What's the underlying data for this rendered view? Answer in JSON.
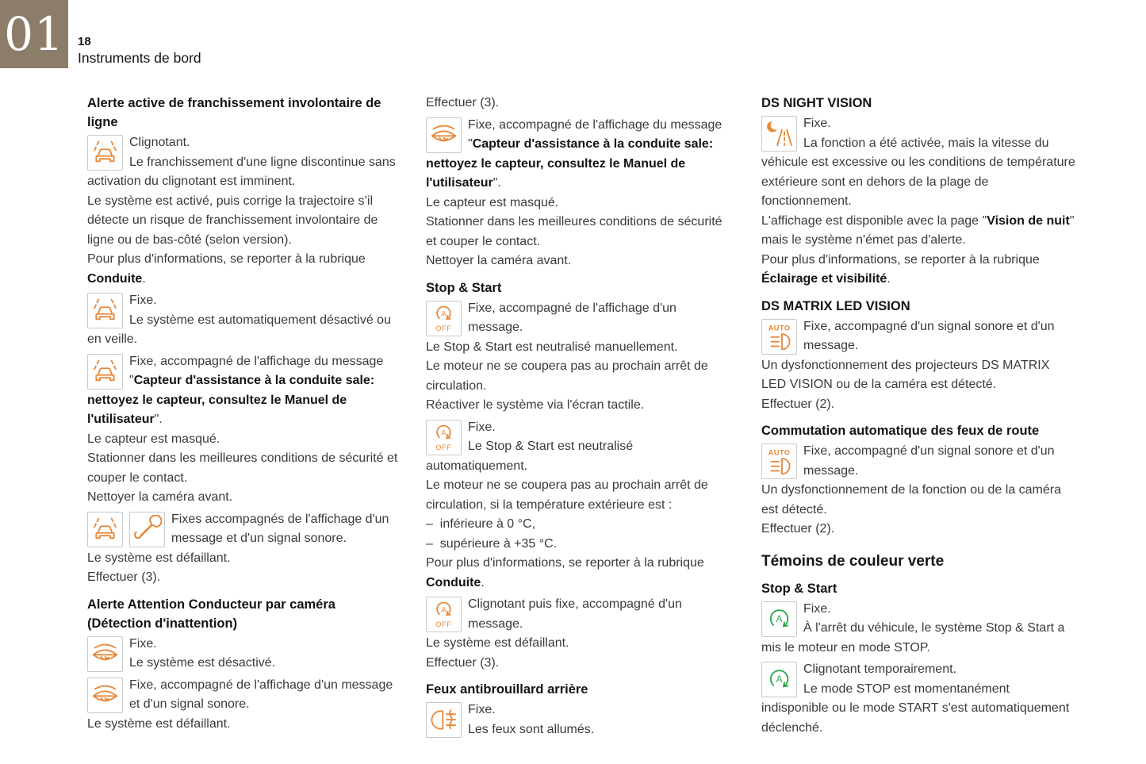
{
  "page": {
    "chapter": "01",
    "page_number": "18",
    "section_title": "Instruments de bord"
  },
  "colors": {
    "accent_orange": "#e8893b",
    "accent_green": "#2ba84a",
    "chapter_box_bg": "#8c7d6b",
    "body_text": "#3a3a3a"
  },
  "icon_legend": {
    "lane": "lane-departure-warning-icon",
    "wrench": "service-wrench-icon",
    "eye": "driver-attention-eye-icon",
    "aoff": "stop-start-off-icon",
    "fog": "rear-fog-lights-icon",
    "night": "night-vision-icon",
    "auto": "auto-main-beam-headlight-icon",
    "green": "stop-start-icon"
  },
  "c1": [
    {
      "h": "Alerte active de franchissement involontaire de ligne"
    },
    {
      "icons": [
        "lane"
      ],
      "paras": [
        [
          {
            "t": "Clignotant."
          }
        ],
        [
          {
            "t": "Le franchissement d'une ligne discontinue sans activation du clignotant est imminent."
          }
        ],
        [
          {
            "t": "Le système est activé, puis corrige la trajectoire s’il détecte un risque de franchissement involontaire de ligne ou de bas-côté (selon version)."
          }
        ],
        [
          {
            "t": "Pour plus d'informations, se reporter à la rubrique "
          },
          {
            "t": "Conduite",
            "b": true
          },
          {
            "t": "."
          }
        ]
      ]
    },
    {
      "icons": [
        "lane"
      ],
      "paras": [
        [
          {
            "t": "Fixe."
          }
        ],
        [
          {
            "t": "Le système est automatiquement désactivé ou en veille."
          }
        ]
      ]
    },
    {
      "icons": [
        "lane"
      ],
      "paras": [
        [
          {
            "t": "Fixe, accompagné de l'affichage du message \""
          },
          {
            "t": "Capteur d'assistance à la conduite sale: nettoyez le capteur, consultez le Manuel de l'utilisateur",
            "b": true
          },
          {
            "t": "\"."
          }
        ],
        [
          {
            "t": "Le capteur est masqué."
          }
        ],
        [
          {
            "t": "Stationner dans les meilleures conditions de sécurité et couper le contact."
          }
        ],
        [
          {
            "t": "Nettoyer la caméra avant."
          }
        ]
      ]
    },
    {
      "icons": [
        "lane",
        "wrench"
      ],
      "paras": [
        [
          {
            "t": "Fixes accompagnés de l'affichage d'un message et d'un signal sonore."
          }
        ],
        [
          {
            "t": "Le système est défaillant."
          }
        ],
        [
          {
            "t": "Effectuer (3)."
          }
        ]
      ]
    },
    {
      "h": "Alerte Attention Conducteur par caméra (Détection d'inattention)"
    },
    {
      "icons": [
        "eye"
      ],
      "paras": [
        [
          {
            "t": "Fixe."
          }
        ],
        [
          {
            "t": "Le système est désactivé."
          }
        ]
      ]
    },
    {
      "icons": [
        "eye"
      ],
      "paras": [
        [
          {
            "t": "Fixe, accompagné de l'affichage d'un message et d'un signal sonore."
          }
        ],
        [
          {
            "t": "Le système est défaillant."
          }
        ]
      ]
    }
  ],
  "c2": [
    {
      "paras": [
        [
          {
            "t": "Effectuer (3)."
          }
        ]
      ]
    },
    {
      "icons": [
        "eye"
      ],
      "paras": [
        [
          {
            "t": "Fixe, accompagné de l'affichage du message \""
          },
          {
            "t": "Capteur d'assistance à la conduite sale: nettoyez le capteur, consultez le Manuel de l'utilisateur",
            "b": true
          },
          {
            "t": "\"."
          }
        ],
        [
          {
            "t": "Le capteur est masqué."
          }
        ],
        [
          {
            "t": "Stationner dans les meilleures conditions de sécurité et couper le contact."
          }
        ],
        [
          {
            "t": "Nettoyer la caméra avant."
          }
        ]
      ]
    },
    {
      "h": "Stop & Start"
    },
    {
      "icons": [
        "aoff"
      ],
      "paras": [
        [
          {
            "t": "Fixe, accompagné de l'affichage d'un message."
          }
        ],
        [
          {
            "t": "Le Stop & Start est neutralisé manuellement."
          }
        ],
        [
          {
            "t": "Le moteur ne se coupera pas au prochain arrêt de circulation."
          }
        ],
        [
          {
            "t": "Réactiver le système via l'écran tactile."
          }
        ]
      ]
    },
    {
      "icons": [
        "aoff"
      ],
      "paras": [
        [
          {
            "t": "Fixe."
          }
        ],
        [
          {
            "t": "Le Stop & Start est neutralisé automatiquement."
          }
        ],
        [
          {
            "t": "Le moteur ne se coupera pas au prochain arrêt de circulation, si la température extérieure est :"
          }
        ],
        [
          {
            "t": "–  inférieure à 0 °C,"
          }
        ],
        [
          {
            "t": "–  supérieure à +35 °C."
          }
        ],
        [
          {
            "t": "Pour plus d'informations, se reporter à la rubrique "
          },
          {
            "t": "Conduite",
            "b": true
          },
          {
            "t": "."
          }
        ]
      ]
    },
    {
      "icons": [
        "aoff"
      ],
      "paras": [
        [
          {
            "t": "Clignotant puis fixe, accompagné d'un message."
          }
        ],
        [
          {
            "t": "Le système est défaillant."
          }
        ],
        [
          {
            "t": "Effectuer (3)."
          }
        ]
      ]
    },
    {
      "h": "Feux antibrouillard arrière"
    },
    {
      "icons": [
        "fog"
      ],
      "paras": [
        [
          {
            "t": "Fixe."
          }
        ],
        [
          {
            "t": "Les feux sont allumés."
          }
        ]
      ]
    }
  ],
  "c3": [
    {
      "h": "DS NIGHT VISION"
    },
    {
      "icons": [
        "night"
      ],
      "paras": [
        [
          {
            "t": "Fixe."
          }
        ],
        [
          {
            "t": "La fonction a été activée, mais la vitesse du véhicule est excessive ou les conditions de température extérieure sont en dehors de la plage de fonctionnement."
          }
        ],
        [
          {
            "t": "L'affichage est disponible avec la page \""
          },
          {
            "t": "Vision de nuit",
            "b": true
          },
          {
            "t": "\" mais le système n'émet pas d'alerte."
          }
        ],
        [
          {
            "t": "Pour plus d'informations, se reporter à la rubrique "
          },
          {
            "t": "Éclairage et visibilité",
            "b": true
          },
          {
            "t": "."
          }
        ]
      ]
    },
    {
      "h": "DS MATRIX LED VISION"
    },
    {
      "icons": [
        "auto"
      ],
      "paras": [
        [
          {
            "t": "Fixe, accompagné d'un signal sonore et d'un message."
          }
        ],
        [
          {
            "t": "Un dysfonctionnement des projecteurs DS MATRIX LED VISION ou de la caméra est détecté."
          }
        ],
        [
          {
            "t": "Effectuer (2)."
          }
        ]
      ]
    },
    {
      "h": "Commutation automatique des feux de route"
    },
    {
      "icons": [
        "auto"
      ],
      "paras": [
        [
          {
            "t": "Fixe, accompagné d'un signal sonore et d'un message."
          }
        ],
        [
          {
            "t": "Un dysfonctionnement de la fonction ou de la caméra est détecté."
          }
        ],
        [
          {
            "t": "Effectuer (2)."
          }
        ]
      ]
    },
    {
      "hs": "Témoins de couleur verte"
    },
    {
      "h": "Stop & Start"
    },
    {
      "icons": [
        "green"
      ],
      "paras": [
        [
          {
            "t": "Fixe."
          }
        ],
        [
          {
            "t": "À l'arrêt du véhicule, le système Stop & Start a mis le moteur en mode STOP."
          }
        ]
      ]
    },
    {
      "icons": [
        "green"
      ],
      "paras": [
        [
          {
            "t": "Clignotant temporairement."
          }
        ],
        [
          {
            "t": "Le mode STOP est momentanément indisponible ou le mode START s'est automatiquement déclenché."
          }
        ]
      ]
    }
  ]
}
